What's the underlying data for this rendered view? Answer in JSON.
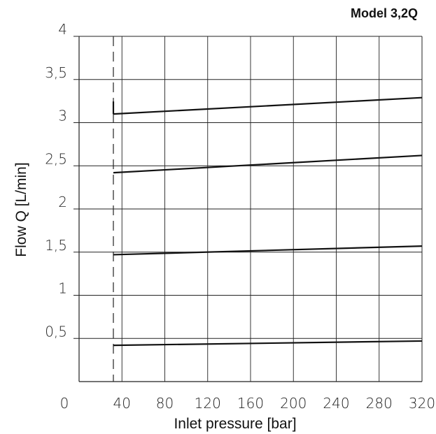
{
  "chart_data": {
    "type": "line",
    "title": "Model 3,2Q",
    "xlabel": "Inlet pressure [bar]",
    "ylabel": "Flow Q  [L/min]",
    "xlim": [
      0,
      320
    ],
    "ylim": [
      0,
      4
    ],
    "x_ticks": [
      0,
      40,
      80,
      120,
      160,
      200,
      240,
      280,
      320
    ],
    "x_tick_labels": [
      "0",
      "40",
      "80",
      "120",
      "160",
      "200",
      "240",
      "280",
      "320"
    ],
    "y_ticks": [
      0.5,
      1,
      1.5,
      2,
      2.5,
      3,
      3.5,
      4
    ],
    "y_tick_labels": [
      "0,5",
      "1",
      "1,5",
      "2",
      "2,5",
      "3",
      "3,5",
      "4"
    ],
    "grid": true,
    "reference_line": {
      "style": "dashed",
      "x": 32
    },
    "series": [
      {
        "x": [
          32,
          320
        ],
        "y": [
          0.42,
          0.47
        ]
      },
      {
        "x": [
          32,
          320
        ],
        "y": [
          1.47,
          1.57
        ]
      },
      {
        "x": [
          32,
          320
        ],
        "y": [
          2.42,
          2.62
        ]
      },
      {
        "x": [
          32,
          320
        ],
        "y": [
          3.1,
          3.29
        ]
      }
    ],
    "colors": {
      "line": "#111111",
      "grid": "#222222"
    }
  }
}
